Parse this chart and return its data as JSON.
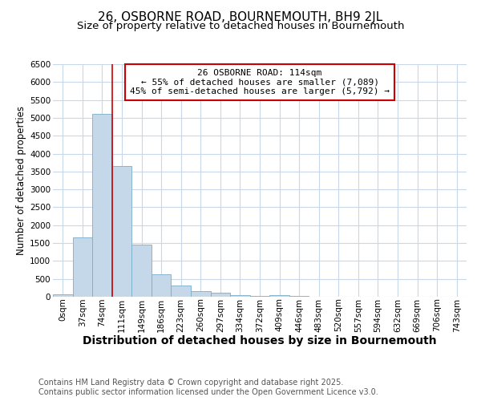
{
  "title": "26, OSBORNE ROAD, BOURNEMOUTH, BH9 2JL",
  "subtitle": "Size of property relative to detached houses in Bournemouth",
  "xlabel": "Distribution of detached houses by size in Bournemouth",
  "ylabel": "Number of detached properties",
  "bar_values": [
    75,
    1650,
    5100,
    3650,
    1450,
    625,
    325,
    155,
    110,
    50,
    30,
    50,
    30,
    5,
    3,
    2,
    1,
    1,
    0,
    0,
    0
  ],
  "bin_labels": [
    "0sqm",
    "37sqm",
    "74sqm",
    "111sqm",
    "149sqm",
    "186sqm",
    "223sqm",
    "260sqm",
    "297sqm",
    "334sqm",
    "372sqm",
    "409sqm",
    "446sqm",
    "483sqm",
    "520sqm",
    "557sqm",
    "594sqm",
    "632sqm",
    "669sqm",
    "706sqm",
    "743sqm"
  ],
  "bar_color": "#c5d8ea",
  "bar_edge_color": "#7aaec8",
  "red_line_x": 2.5,
  "ylim": [
    0,
    6500
  ],
  "yticks": [
    0,
    500,
    1000,
    1500,
    2000,
    2500,
    3000,
    3500,
    4000,
    4500,
    5000,
    5500,
    6000,
    6500
  ],
  "annotation_title": "26 OSBORNE ROAD: 114sqm",
  "annotation_line1": "← 55% of detached houses are smaller (7,089)",
  "annotation_line2": "45% of semi-detached houses are larger (5,792) →",
  "annotation_box_color": "#ffffff",
  "annotation_box_edge_color": "#cc0000",
  "footer_line1": "Contains HM Land Registry data © Crown copyright and database right 2025.",
  "footer_line2": "Contains public sector information licensed under the Open Government Licence v3.0.",
  "background_color": "#ffffff",
  "grid_color": "#c8d8e8",
  "title_fontsize": 11,
  "subtitle_fontsize": 9.5,
  "xlabel_fontsize": 10,
  "ylabel_fontsize": 8.5,
  "tick_fontsize": 7.5,
  "footer_fontsize": 7,
  "annotation_fontsize": 8
}
